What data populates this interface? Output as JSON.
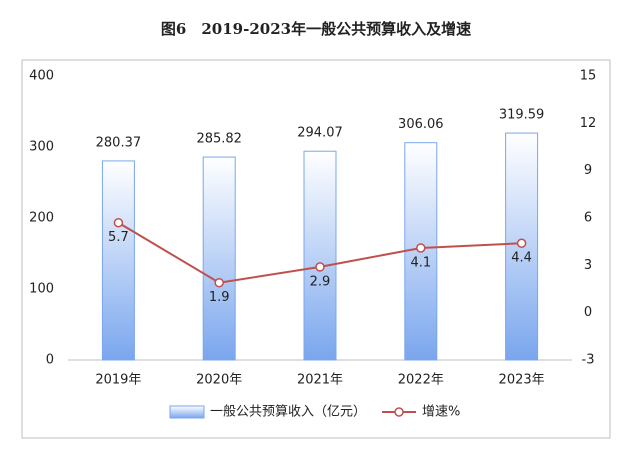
{
  "chart_data": {
    "type": "combo",
    "title": "图6　2019-2023年一般公共预算收入及增速",
    "categories": [
      "2019年",
      "2020年",
      "2021年",
      "2022年",
      "2023年"
    ],
    "series": [
      {
        "name": "一般公共预算收入（亿元）",
        "type": "bar",
        "color": "#7aa6ee",
        "values": [
          280.37,
          285.82,
          294.07,
          306.06,
          319.59
        ]
      },
      {
        "name": "增速%",
        "type": "line",
        "axis": "y2",
        "color": "#c0504d",
        "values": [
          5.7,
          1.9,
          2.9,
          4.1,
          4.4
        ]
      }
    ],
    "ylim": [
      0,
      400
    ],
    "yticks": [
      0,
      100,
      200,
      300,
      400
    ],
    "y2lim": [
      -3,
      15
    ],
    "y2ticks": [
      -3,
      0,
      3,
      6,
      9,
      12,
      15
    ],
    "grid": false
  }
}
